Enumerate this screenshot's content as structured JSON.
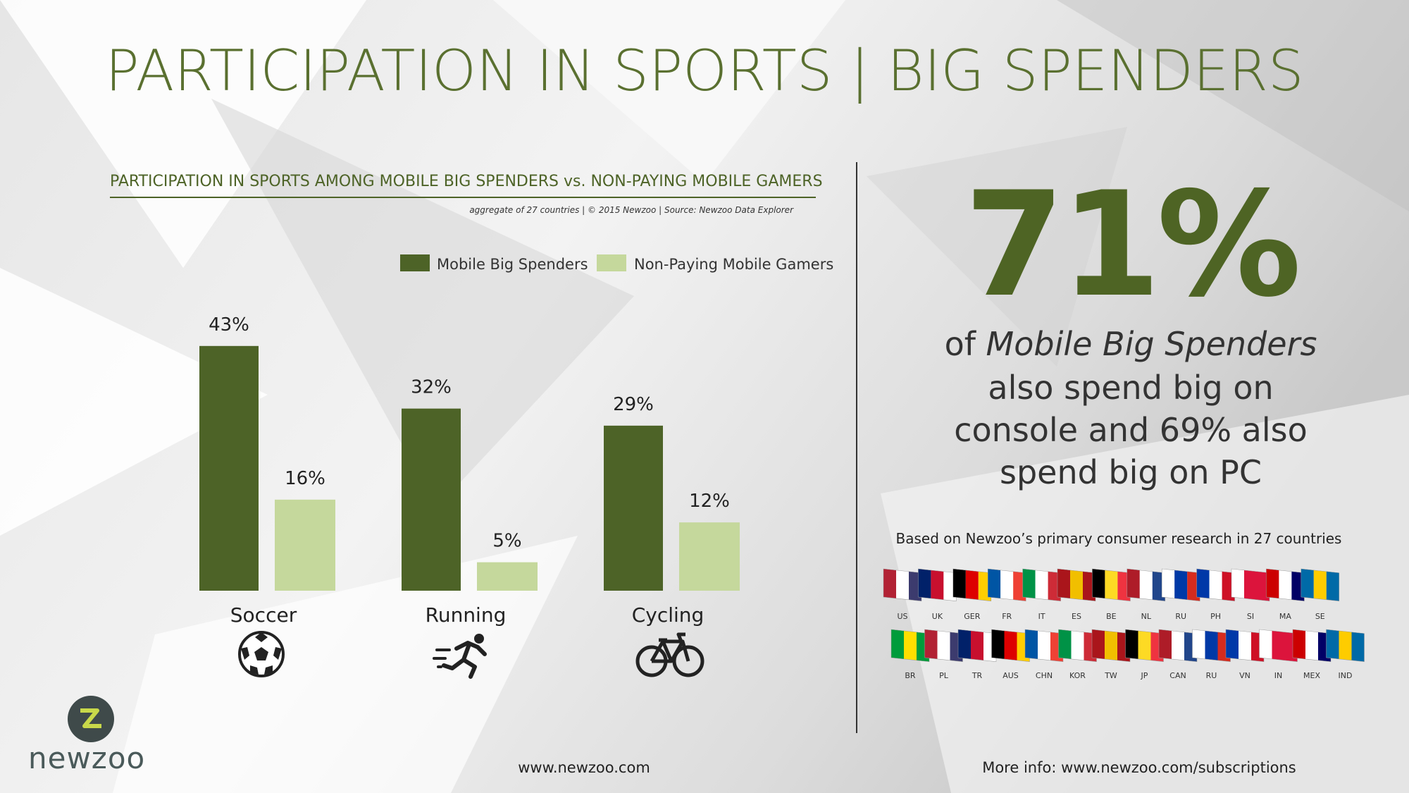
{
  "title": "PARTICIPATION IN SPORTS | BIG SPENDERS",
  "chart_data": {
    "type": "bar",
    "title": "PARTICIPATION IN SPORTS AMONG MOBILE BIG SPENDERS vs. NON-PAYING MOBILE GAMERS",
    "subtitle": "aggregate of 27 countries | © 2015 Newzoo | Source: Newzoo Data Explorer",
    "categories": [
      "Soccer",
      "Running",
      "Cycling"
    ],
    "series": [
      {
        "name": "Mobile Big Spenders",
        "color": "#4d6327",
        "values": [
          43,
          32,
          29
        ],
        "value_labels": [
          "43%",
          "32%",
          "29%"
        ]
      },
      {
        "name": "Non-Paying Mobile Gamers",
        "color": "#c5d89c",
        "values": [
          16,
          5,
          12
        ],
        "value_labels": [
          "16%",
          "5%",
          "12%"
        ]
      }
    ]
  },
  "callout": {
    "figure": "71%",
    "lead": "of",
    "emphasis": "Mobile Big Spenders",
    "lines": [
      "also spend big on",
      "console and 69% also",
      "spend big on PC"
    ]
  },
  "research_note": "Based on Newzoo’s primary consumer research in 27 countries",
  "flags_row1": [
    "US",
    "UK",
    "GER",
    "FR",
    "IT",
    "ES",
    "BE",
    "NL",
    "RU",
    "PH",
    "SI",
    "MA",
    "SE"
  ],
  "flags_row2": [
    "BR",
    "PL",
    "TR",
    "AUS",
    "CHN",
    "KOR",
    "TW",
    "JP",
    "CAN",
    "RU",
    "VN",
    "IN",
    "MEX",
    "IND"
  ],
  "logo_text": "newzoo",
  "footer": {
    "website": "www.newzoo.com",
    "more_info": "More info: www.newzoo.com/subscriptions"
  }
}
